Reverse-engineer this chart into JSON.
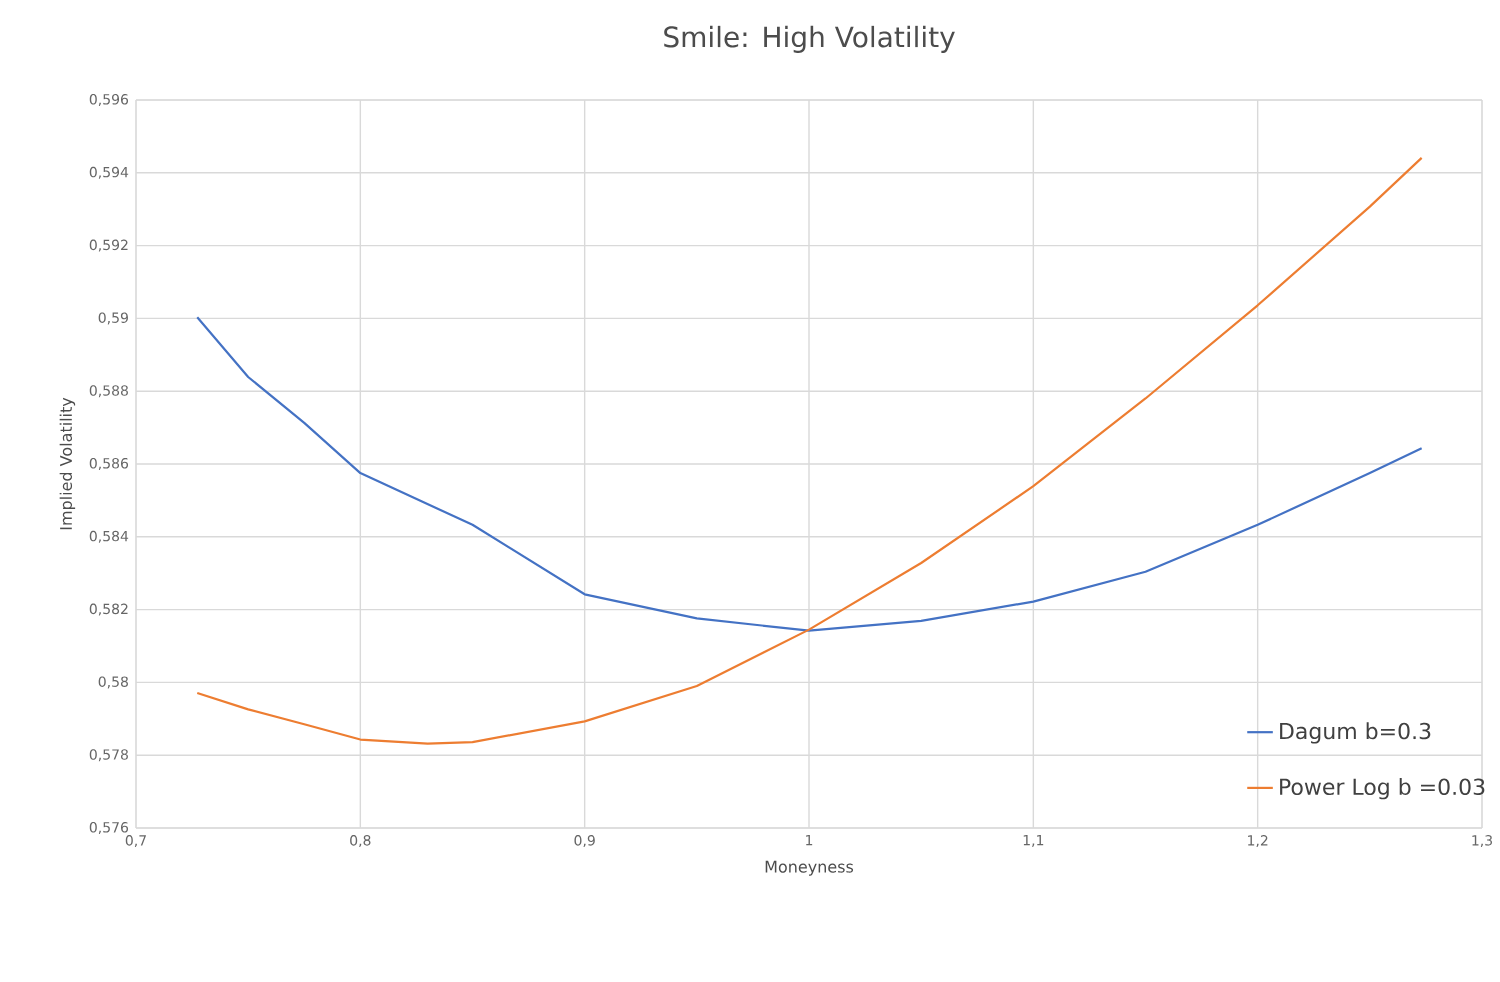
{
  "chart_data": {
    "type": "line",
    "title": "Smile: High Volatility",
    "xlabel": "Moneyness",
    "ylabel": "Implied Volatility",
    "xlim": [
      0.7,
      1.3
    ],
    "xticks": [
      {
        "value": 0.7,
        "label": "0,7"
      },
      {
        "value": 0.8,
        "label": "0,8"
      },
      {
        "value": 0.9,
        "label": "0,9"
      },
      1,
      {
        "value": 1.1,
        "label": "1,1"
      },
      {
        "value": 1.2,
        "label": "1,2"
      },
      {
        "value": 1.3,
        "label": "1,3"
      }
    ],
    "ylim": [
      0.576,
      0.596
    ],
    "yticks": [
      {
        "value": 0.576,
        "label": "0,576"
      },
      {
        "value": 0.578,
        "label": "0,578"
      },
      {
        "value": 0.58,
        "label": "0,58"
      },
      {
        "value": 0.582,
        "label": "0,582"
      },
      {
        "value": 0.584,
        "label": "0,584"
      },
      {
        "value": 0.586,
        "label": "0,586"
      },
      {
        "value": 0.588,
        "label": "0,588"
      },
      {
        "value": 0.59,
        "label": "0,59"
      },
      {
        "value": 0.592,
        "label": "0,592"
      },
      {
        "value": 0.594,
        "label": "0,594"
      },
      {
        "value": 0.596,
        "label": "0,596"
      }
    ],
    "grid": true,
    "legend": "bottom right",
    "marker": "none",
    "line_style": "solid",
    "series": [
      {
        "name": "Dagum b=0.3",
        "color": "#4472c4",
        "x": [
          0.7273,
          0.75,
          0.775,
          0.8,
          0.85,
          0.9,
          0.95,
          1.0,
          1.05,
          1.1,
          1.15,
          1.2,
          1.25,
          1.2731
        ],
        "values": [
          0.59003,
          0.58839,
          0.58713,
          0.58575,
          0.58433,
          0.58242,
          0.58176,
          0.58142,
          0.58169,
          0.58222,
          0.58304,
          0.58433,
          0.58575,
          0.58643
        ]
      },
      {
        "name": "Power Log b =0.03",
        "color": "#ed7d31",
        "x": [
          0.7273,
          0.75,
          0.775,
          0.8,
          0.83,
          0.85,
          0.9,
          0.95,
          1.0,
          1.05,
          1.1,
          1.15,
          1.2,
          1.25,
          1.2731
        ],
        "values": [
          0.57971,
          0.57926,
          0.57885,
          0.57843,
          0.57832,
          0.57836,
          0.57893,
          0.5799,
          0.58145,
          0.58328,
          0.58539,
          0.5878,
          0.59036,
          0.59307,
          0.59441
        ]
      }
    ]
  }
}
